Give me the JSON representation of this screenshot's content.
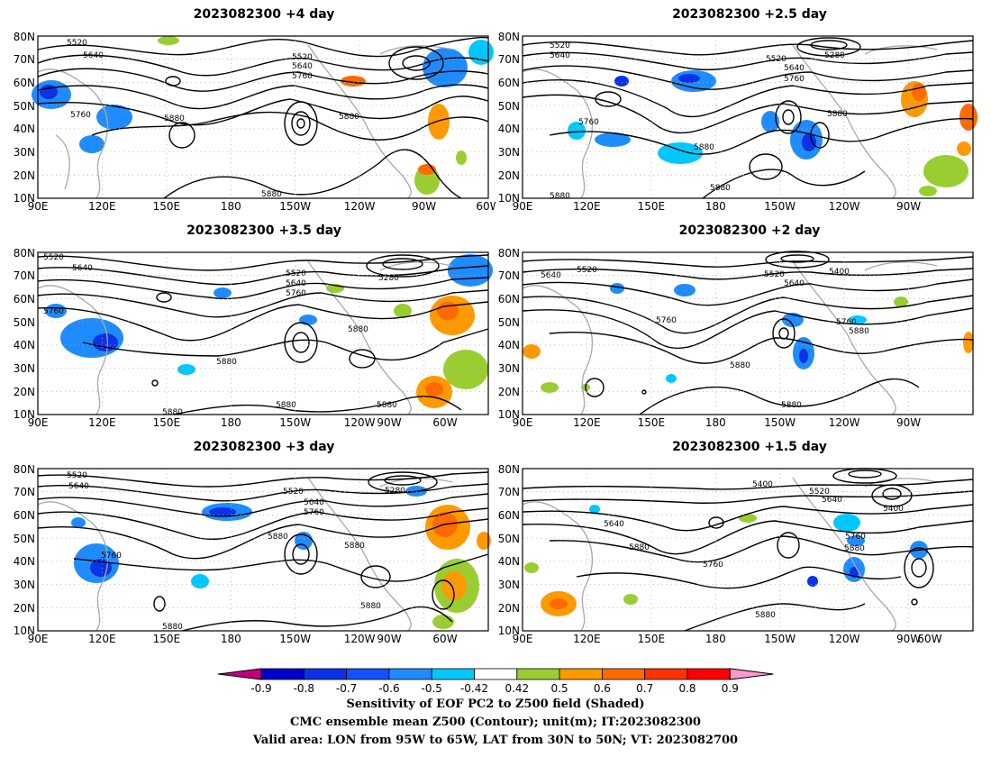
{
  "panels": [
    {
      "title": "2023082300 +4 day",
      "contour_labels": [
        "5520",
        "5640",
        "5520",
        "5640",
        "5760",
        "5760",
        "5880",
        "5880",
        "5880"
      ]
    },
    {
      "title": "2023082300 +2.5 day",
      "contour_labels": [
        "5520",
        "5640",
        "5520",
        "5640",
        "5760",
        "5280",
        "5760",
        "5880",
        "5880",
        "5880",
        "5880"
      ]
    },
    {
      "title": "2023082300 +3.5 day",
      "contour_labels": [
        "5520",
        "5640",
        "5760",
        "5520",
        "5640",
        "5760",
        "5280",
        "5880",
        "5880",
        "5880",
        "5880",
        "5880"
      ]
    },
    {
      "title": "2023082300 +2 day",
      "contour_labels": [
        "5640",
        "5520",
        "5520",
        "5640",
        "5400",
        "5760",
        "5760",
        "5880",
        "5880",
        "5880"
      ]
    },
    {
      "title": "2023082300 +3 day",
      "contour_labels": [
        "5520",
        "5640",
        "5520",
        "5640",
        "5760",
        "5280",
        "5760",
        "5880",
        "5880",
        "5880",
        "5880"
      ]
    },
    {
      "title": "2023082300 +1.5 day",
      "contour_labels": [
        "5400",
        "5520",
        "5640",
        "5640",
        "5400",
        "5880",
        "5760",
        "5760",
        "5880",
        "5880"
      ]
    }
  ],
  "lat_labels": [
    "80N",
    "70N",
    "60N",
    "50N",
    "40N",
    "30N",
    "20N",
    "10N"
  ],
  "lon_labels": [
    "90E",
    "120E",
    "150E",
    "180",
    "150W",
    "120W",
    "90W",
    "60W"
  ],
  "colorbar": {
    "ticks": [
      "-0.9",
      "-0.8",
      "-0.7",
      "-0.6",
      "-0.5",
      "-0.42",
      "0.42",
      "0.5",
      "0.6",
      "0.7",
      "0.8",
      "0.9"
    ],
    "colors": [
      "#c0007f",
      "#0000c8",
      "#0a32e6",
      "#1450ff",
      "#1e8cff",
      "#00c8ff",
      "#ffffff",
      "#9acd32",
      "#ff9900",
      "#ff6a00",
      "#ff3300",
      "#ff0000",
      "#ff99cc"
    ]
  },
  "footer": {
    "line1": "Sensitivity of EOF PC2 to Z500 field (Shaded)",
    "line2": "CMC ensemble mean Z500 (Contour); unit(m); IT:2023082300",
    "line3": "Valid area: LON from 95W to 65W, LAT from 30N to 50N; VT: 2023082700"
  }
}
